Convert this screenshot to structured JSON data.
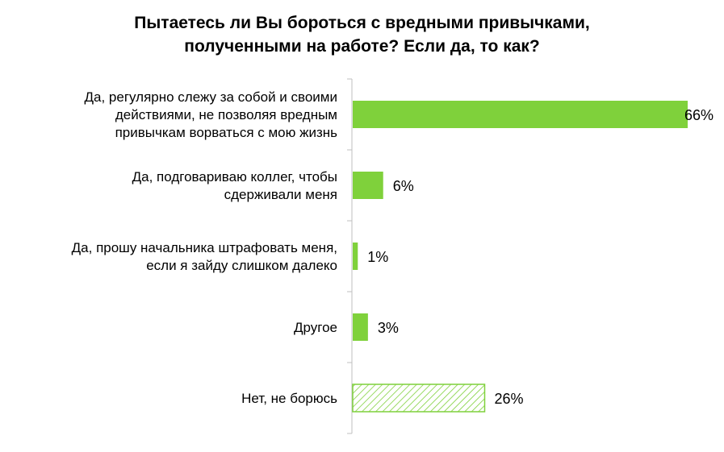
{
  "chart_data": {
    "type": "bar",
    "orientation": "horizontal",
    "title": "Пытаетесь ли Вы бороться с вредными привычками,\nполученными на работе? Если да, то как?",
    "categories": [
      "Да, регулярно слежу за собой и своими\nдействиями, не позволяя вредным\nпривычкам ворваться с мою жизнь",
      "Да, подговариваю коллег, чтобы\nсдерживали меня",
      "Да, прошу начальника штрафовать меня,\nесли я зайду слишком далеко",
      "Другое",
      "Нет, не борюсь"
    ],
    "values": [
      66,
      6,
      1,
      3,
      26
    ],
    "value_labels": [
      "66%",
      "6%",
      "1%",
      "3%",
      "26%"
    ],
    "bar_styles": [
      "solid",
      "solid",
      "solid",
      "solid",
      "hatched"
    ],
    "xlim": [
      0,
      66
    ],
    "grid": false,
    "legend": "none",
    "colors": {
      "bar": "#7fd13b",
      "hatch": "#7fd13b",
      "axis": "#bfbfbf"
    }
  }
}
